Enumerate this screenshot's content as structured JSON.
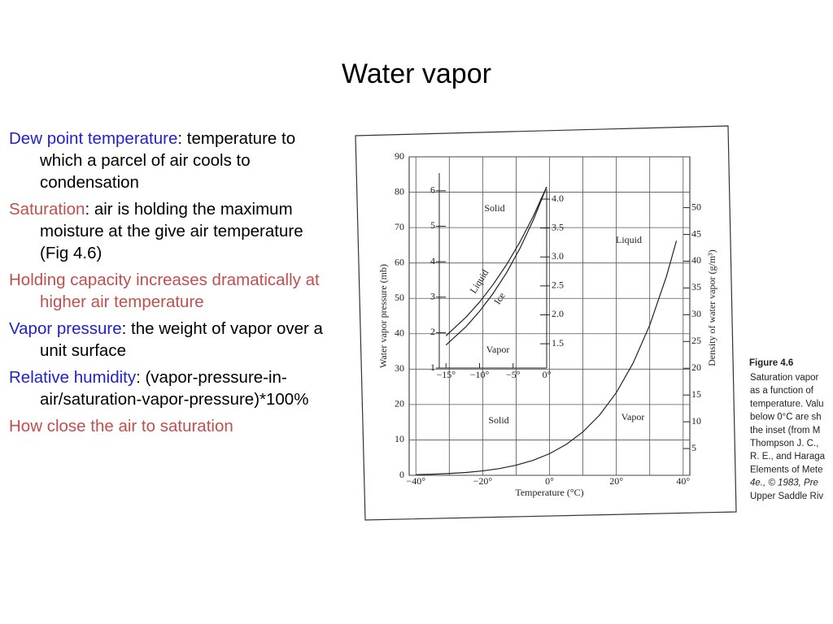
{
  "header": {
    "title": "Water vapor"
  },
  "bullets": [
    {
      "parts": [
        {
          "text": "Dew point temperature",
          "color": "#2222cc"
        },
        {
          "text": ": temperature to which a parcel of air cools to condensation",
          "color": "#000000"
        }
      ]
    },
    {
      "parts": [
        {
          "text": "Saturation",
          "color": "#c0504d"
        },
        {
          "text": ": air is holding the maximum moisture at the give air temperature (Fig 4.6)",
          "color": "#000000"
        }
      ]
    },
    {
      "parts": [
        {
          "text": "Holding capacity increases dramatically at higher air temperature",
          "color": "#c0504d"
        }
      ]
    },
    {
      "parts": [
        {
          "text": "Vapor pressure",
          "color": "#2222cc"
        },
        {
          "text": ": the weight of vapor over a unit surface",
          "color": "#000000"
        }
      ]
    },
    {
      "parts": [
        {
          "text": "Relative humidity",
          "color": "#2222cc"
        },
        {
          "text": ": (vapor-pressure-in-air/saturation-vapor-pressure)*100%",
          "color": "#000000"
        }
      ]
    },
    {
      "parts": [
        {
          "text": "How close the air to saturation",
          "color": "#c0504d"
        }
      ]
    }
  ],
  "figure": {
    "chart_data": {
      "type": "line",
      "ylabel": "Water vapor pressure (mb)",
      "y2label": "Density of water vapor (g/m³)",
      "xlabel": "Temperature (°C)",
      "x": [
        -40,
        -35,
        -30,
        -25,
        -20,
        -15,
        -10,
        -5,
        0,
        5,
        10,
        15,
        20,
        25,
        30,
        35,
        38
      ],
      "series": [
        {
          "color": "#222222",
          "values": [
            0.19,
            0.31,
            0.51,
            0.81,
            1.25,
            1.91,
            2.86,
            4.21,
            6.11,
            8.72,
            12.27,
            17.04,
            23.37,
            31.67,
            42.43,
            56.2,
            66.3
          ]
        }
      ],
      "xlim": [
        -42,
        42
      ],
      "xticks": [
        {
          "value": -40,
          "label": "−40°"
        },
        {
          "value": -20,
          "label": "−20°"
        },
        {
          "value": 0,
          "label": "0°"
        },
        {
          "value": 20,
          "label": "20°"
        },
        {
          "value": 40,
          "label": "40°"
        }
      ],
      "x_minor_ticks": [
        -30,
        -10,
        10,
        30
      ],
      "ylim": [
        0,
        90
      ],
      "yticks": [
        0,
        10,
        20,
        30,
        40,
        50,
        60,
        70,
        80,
        90
      ],
      "y2lim": [
        0,
        59.5
      ],
      "y2ticks": [
        5,
        10,
        15,
        20,
        25,
        30,
        35,
        40,
        45,
        50
      ],
      "grid": true,
      "annotations": [
        "Solid",
        "Liquid",
        "Vapor",
        "Solid",
        "Vapor"
      ],
      "inset": {
        "type": "line",
        "x": [
          -15,
          -12,
          -10,
          -8,
          -6,
          -4,
          -2,
          0
        ],
        "series": [
          {
            "name": "Liquid",
            "color": "#222222",
            "values": [
              1.91,
              2.44,
              2.86,
              3.35,
              3.91,
              4.55,
              5.28,
              6.11
            ]
          },
          {
            "name": "Ice",
            "color": "#222222",
            "values": [
              1.65,
              2.17,
              2.6,
              3.1,
              3.68,
              4.37,
              5.17,
              6.11
            ]
          }
        ],
        "xlim": [
          -16,
          0
        ],
        "xticks": [
          {
            "value": -15,
            "label": "−15°"
          },
          {
            "value": -10,
            "label": "−10°"
          },
          {
            "value": -5,
            "label": "−5°"
          },
          {
            "value": 0,
            "label": "0°"
          }
        ],
        "ylim": [
          1,
          6.5
        ],
        "yticks": [
          1,
          2,
          3,
          4,
          5,
          6
        ],
        "y2lim": [
          1.08,
          4.45
        ],
        "y2ticks": [
          1.5,
          {
            "value": 2,
            "label": "2.0"
          },
          2.5,
          {
            "value": 3,
            "label": "3.0"
          },
          3.5,
          {
            "value": 4,
            "label": "4.0"
          }
        ]
      }
    },
    "caption": {
      "label": "Figure 4.6",
      "lines": [
        "Saturation vapor",
        "as a function of",
        "temperature. Valu",
        "below 0°C are sh",
        "the inset (from M",
        "Thompson J. C.,",
        "R. E., and Haraga",
        "Elements of Mete",
        "4e., © 1983, Pre",
        "Upper Saddle Riv"
      ]
    }
  }
}
